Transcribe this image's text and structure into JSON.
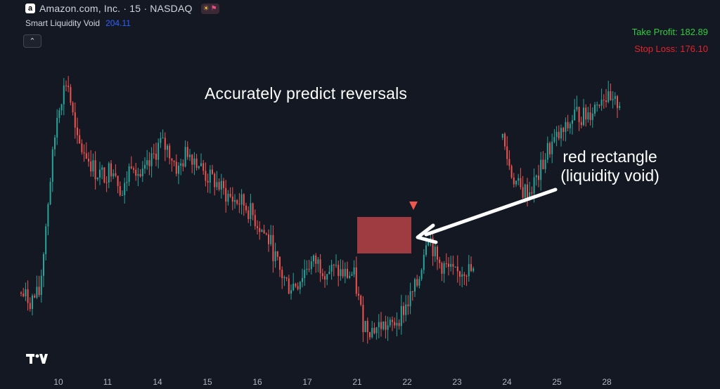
{
  "header": {
    "icon": "amazon-icon",
    "icon_glyph": "a",
    "symbol_title": "Amazon.com, Inc. · 15 · NASDAQ",
    "badges": [
      "sun-icon",
      "flag-icon"
    ]
  },
  "indicator": {
    "name": "Smart Liquidity Void",
    "value": "204.11"
  },
  "collapse_glyph": "⌃",
  "take_profit": "Take Profit: 182.89",
  "stop_loss": "Stop Loss: 176.10",
  "annotations": {
    "headline": "Accurately predict reversals",
    "box_line1": "red rectangle",
    "box_line2": "(liquidity void)"
  },
  "colors": {
    "background": "#141823",
    "up": "#26a69a",
    "down": "#ef5350",
    "void_fill": "#c0464a",
    "take_profit": "#2ecc40",
    "stop_loss": "#e5232b",
    "arrow": "#ffffff"
  },
  "chart_data": {
    "type": "line",
    "x_axis_ticks": [
      "10",
      "11",
      "14",
      "15",
      "16",
      "17",
      "21",
      "22",
      "23",
      "24",
      "25",
      "28"
    ],
    "series": [
      {
        "values": [
          177,
          176.5,
          177,
          184,
          190,
          192,
          187.5,
          186.8,
          185.5,
          185.2,
          186,
          183.8,
          186.5,
          185,
          186,
          187.5,
          187,
          185.5,
          187,
          186.3,
          185.2,
          184.8,
          184,
          183.5,
          183.3,
          182.5,
          181.5,
          180.5,
          178.5,
          177.5,
          177.8,
          179,
          179.2,
          178.6,
          178.6,
          178.3,
          178.3,
          175,
          174.5,
          174.8,
          174.6,
          175.5,
          176.5,
          177.8,
          181.5,
          179.2,
          178.8,
          178.2,
          178.8,
          178.4,
          null,
          null,
          188,
          185.5,
          184.2,
          184.1,
          185.2,
          187,
          187.8,
          188.4,
          189.6,
          189.3,
          190,
          191,
          190,
          190.6
        ]
      }
    ],
    "liquidity_void": {
      "type": "rectangle",
      "color": "red"
    },
    "signal": "down-triangle",
    "ylim": [
      172,
      196
    ]
  }
}
